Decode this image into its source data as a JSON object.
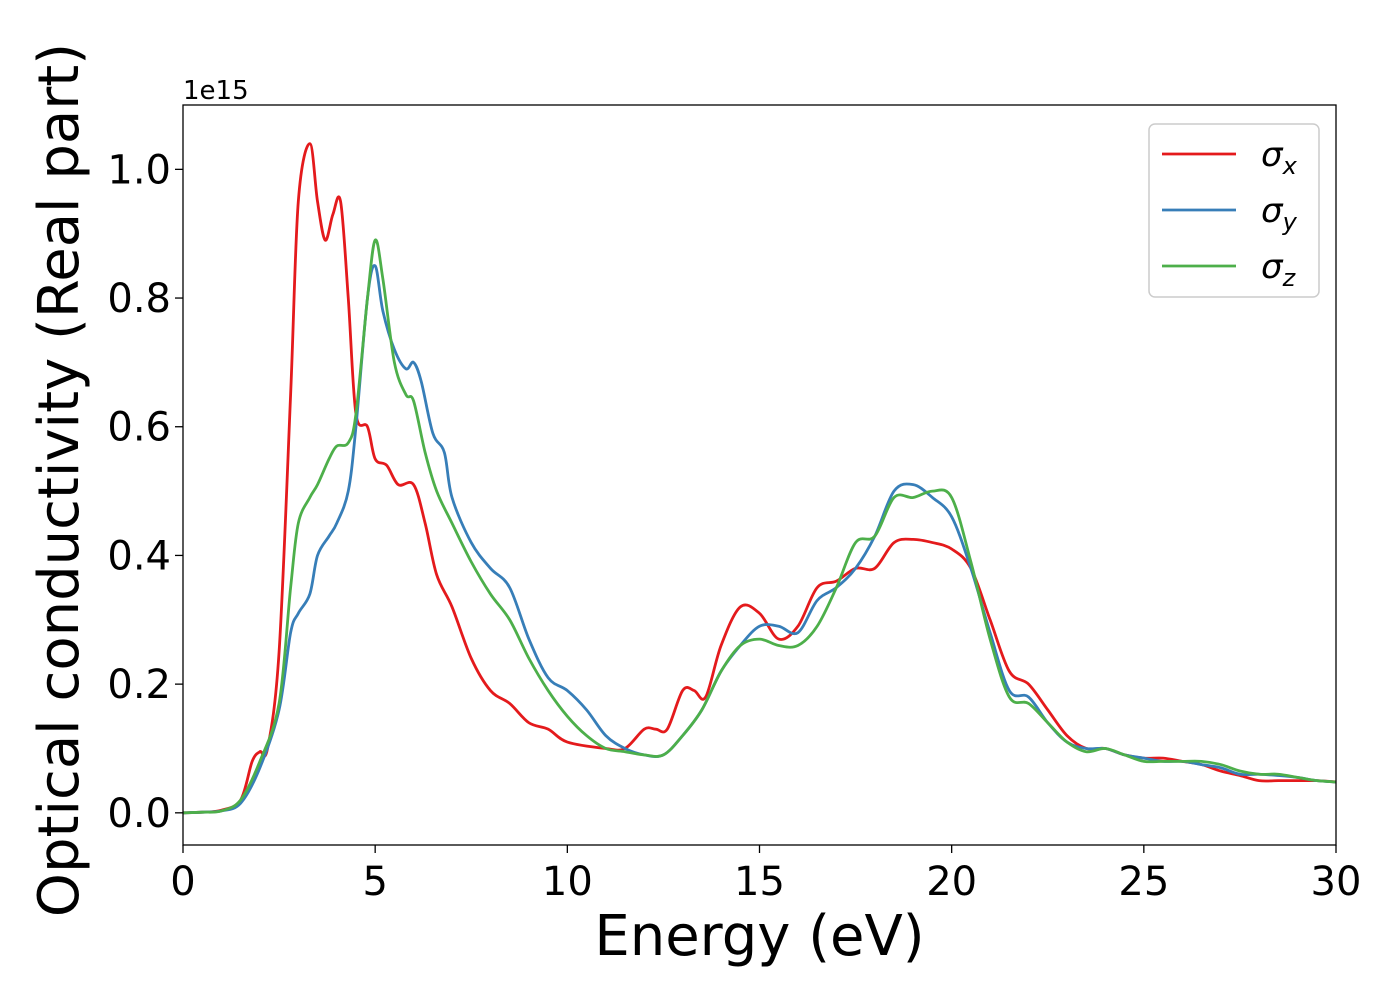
{
  "chart_data": {
    "type": "line",
    "title": "",
    "xlabel": "Energy (eV)",
    "ylabel": "Optical conductivity (Real part)",
    "y_offset_label": "1e15",
    "xlim": [
      0,
      30
    ],
    "ylim": [
      -0.05,
      1.1
    ],
    "x_ticks": [
      0,
      5,
      10,
      15,
      20,
      25,
      30
    ],
    "x_tick_labels": [
      "0",
      "5",
      "10",
      "15",
      "20",
      "25",
      "30"
    ],
    "y_ticks": [
      0.0,
      0.2,
      0.4,
      0.6,
      0.8,
      1.0
    ],
    "y_tick_labels": [
      "0.0",
      "0.2",
      "0.4",
      "0.6",
      "0.8",
      "1.0"
    ],
    "grid": false,
    "legend_position": "top-right",
    "series": [
      {
        "name": "σx",
        "legend_symbol": "σ",
        "legend_subscript": "x",
        "color": "#e41a1c",
        "points": [
          [
            0,
            0
          ],
          [
            0.5,
            0.001
          ],
          [
            1,
            0.004
          ],
          [
            1.5,
            0.02
          ],
          [
            1.8,
            0.08
          ],
          [
            2.0,
            0.095
          ],
          [
            2.2,
            0.1
          ],
          [
            2.5,
            0.25
          ],
          [
            2.8,
            0.65
          ],
          [
            3.0,
            0.95
          ],
          [
            3.3,
            1.04
          ],
          [
            3.5,
            0.95
          ],
          [
            3.7,
            0.89
          ],
          [
            3.9,
            0.93
          ],
          [
            4.1,
            0.95
          ],
          [
            4.3,
            0.8
          ],
          [
            4.5,
            0.62
          ],
          [
            4.8,
            0.6
          ],
          [
            5.0,
            0.55
          ],
          [
            5.3,
            0.54
          ],
          [
            5.6,
            0.51
          ],
          [
            6.0,
            0.51
          ],
          [
            6.3,
            0.45
          ],
          [
            6.6,
            0.37
          ],
          [
            7.0,
            0.32
          ],
          [
            7.5,
            0.24
          ],
          [
            8.0,
            0.19
          ],
          [
            8.5,
            0.17
          ],
          [
            9.0,
            0.14
          ],
          [
            9.5,
            0.13
          ],
          [
            10.0,
            0.11
          ],
          [
            11.0,
            0.1
          ],
          [
            11.5,
            0.1
          ],
          [
            12.0,
            0.13
          ],
          [
            12.3,
            0.13
          ],
          [
            12.6,
            0.13
          ],
          [
            13.0,
            0.19
          ],
          [
            13.3,
            0.19
          ],
          [
            13.6,
            0.18
          ],
          [
            14.0,
            0.26
          ],
          [
            14.5,
            0.32
          ],
          [
            15.0,
            0.31
          ],
          [
            15.5,
            0.27
          ],
          [
            16.0,
            0.29
          ],
          [
            16.5,
            0.35
          ],
          [
            17.0,
            0.36
          ],
          [
            17.5,
            0.38
          ],
          [
            18.0,
            0.38
          ],
          [
            18.5,
            0.42
          ],
          [
            19.0,
            0.425
          ],
          [
            19.5,
            0.42
          ],
          [
            20.0,
            0.41
          ],
          [
            20.5,
            0.38
          ],
          [
            21.0,
            0.3
          ],
          [
            21.5,
            0.22
          ],
          [
            22.0,
            0.2
          ],
          [
            22.5,
            0.16
          ],
          [
            23.0,
            0.12
          ],
          [
            23.5,
            0.1
          ],
          [
            24.0,
            0.1
          ],
          [
            24.5,
            0.09
          ],
          [
            25.0,
            0.085
          ],
          [
            25.5,
            0.085
          ],
          [
            26.0,
            0.08
          ],
          [
            26.5,
            0.075
          ],
          [
            27.0,
            0.065
          ],
          [
            27.5,
            0.058
          ],
          [
            28.0,
            0.05
          ],
          [
            28.5,
            0.05
          ],
          [
            29.0,
            0.05
          ],
          [
            29.5,
            0.05
          ],
          [
            30.0,
            0.048
          ]
        ]
      },
      {
        "name": "σy",
        "legend_symbol": "σ",
        "legend_subscript": "y",
        "color": "#377eb8",
        "points": [
          [
            0,
            0
          ],
          [
            0.5,
            0.001
          ],
          [
            1,
            0.003
          ],
          [
            1.5,
            0.015
          ],
          [
            2.0,
            0.07
          ],
          [
            2.5,
            0.16
          ],
          [
            2.8,
            0.28
          ],
          [
            3.0,
            0.31
          ],
          [
            3.3,
            0.34
          ],
          [
            3.5,
            0.4
          ],
          [
            3.8,
            0.43
          ],
          [
            4.0,
            0.45
          ],
          [
            4.3,
            0.5
          ],
          [
            4.5,
            0.6
          ],
          [
            4.8,
            0.8
          ],
          [
            5.0,
            0.85
          ],
          [
            5.2,
            0.78
          ],
          [
            5.5,
            0.72
          ],
          [
            5.8,
            0.69
          ],
          [
            6.0,
            0.7
          ],
          [
            6.2,
            0.67
          ],
          [
            6.5,
            0.59
          ],
          [
            6.8,
            0.56
          ],
          [
            7.0,
            0.49
          ],
          [
            7.5,
            0.42
          ],
          [
            8.0,
            0.38
          ],
          [
            8.5,
            0.35
          ],
          [
            9.0,
            0.27
          ],
          [
            9.5,
            0.21
          ],
          [
            10.0,
            0.19
          ],
          [
            10.5,
            0.16
          ],
          [
            11.0,
            0.12
          ],
          [
            11.5,
            0.1
          ],
          [
            12.0,
            0.09
          ],
          [
            12.5,
            0.09
          ],
          [
            13.0,
            0.12
          ],
          [
            13.5,
            0.16
          ],
          [
            14.0,
            0.22
          ],
          [
            14.5,
            0.26
          ],
          [
            15.0,
            0.29
          ],
          [
            15.5,
            0.29
          ],
          [
            16.0,
            0.28
          ],
          [
            16.5,
            0.33
          ],
          [
            17.0,
            0.35
          ],
          [
            17.5,
            0.38
          ],
          [
            18.0,
            0.43
          ],
          [
            18.5,
            0.5
          ],
          [
            19.0,
            0.51
          ],
          [
            19.5,
            0.49
          ],
          [
            20.0,
            0.46
          ],
          [
            20.5,
            0.38
          ],
          [
            21.0,
            0.28
          ],
          [
            21.5,
            0.19
          ],
          [
            22.0,
            0.18
          ],
          [
            22.5,
            0.14
          ],
          [
            23.0,
            0.11
          ],
          [
            23.5,
            0.1
          ],
          [
            24.0,
            0.1
          ],
          [
            24.5,
            0.09
          ],
          [
            25.0,
            0.085
          ],
          [
            25.5,
            0.08
          ],
          [
            26.0,
            0.08
          ],
          [
            26.5,
            0.075
          ],
          [
            27.0,
            0.07
          ],
          [
            27.5,
            0.06
          ],
          [
            28.0,
            0.06
          ],
          [
            28.5,
            0.058
          ],
          [
            29.0,
            0.055
          ],
          [
            29.5,
            0.05
          ],
          [
            30.0,
            0.048
          ]
        ]
      },
      {
        "name": "σz",
        "legend_symbol": "σ",
        "legend_subscript": "z",
        "color": "#4daf4a",
        "points": [
          [
            0,
            0
          ],
          [
            0.5,
            0.001
          ],
          [
            1,
            0.003
          ],
          [
            1.5,
            0.02
          ],
          [
            2.0,
            0.08
          ],
          [
            2.5,
            0.17
          ],
          [
            2.8,
            0.35
          ],
          [
            3.0,
            0.45
          ],
          [
            3.3,
            0.49
          ],
          [
            3.5,
            0.51
          ],
          [
            3.8,
            0.55
          ],
          [
            4.0,
            0.57
          ],
          [
            4.3,
            0.575
          ],
          [
            4.5,
            0.62
          ],
          [
            4.8,
            0.8
          ],
          [
            5.0,
            0.89
          ],
          [
            5.2,
            0.83
          ],
          [
            5.5,
            0.7
          ],
          [
            5.8,
            0.65
          ],
          [
            6.0,
            0.64
          ],
          [
            6.3,
            0.56
          ],
          [
            6.6,
            0.5
          ],
          [
            7.0,
            0.45
          ],
          [
            7.5,
            0.39
          ],
          [
            8.0,
            0.34
          ],
          [
            8.5,
            0.3
          ],
          [
            9.0,
            0.24
          ],
          [
            9.5,
            0.19
          ],
          [
            10.0,
            0.15
          ],
          [
            10.5,
            0.12
          ],
          [
            11.0,
            0.1
          ],
          [
            11.5,
            0.095
          ],
          [
            12.0,
            0.09
          ],
          [
            12.5,
            0.09
          ],
          [
            13.0,
            0.12
          ],
          [
            13.5,
            0.16
          ],
          [
            14.0,
            0.22
          ],
          [
            14.5,
            0.26
          ],
          [
            15.0,
            0.27
          ],
          [
            15.5,
            0.26
          ],
          [
            16.0,
            0.26
          ],
          [
            16.5,
            0.29
          ],
          [
            17.0,
            0.35
          ],
          [
            17.5,
            0.42
          ],
          [
            18.0,
            0.43
          ],
          [
            18.5,
            0.49
          ],
          [
            19.0,
            0.49
          ],
          [
            19.5,
            0.5
          ],
          [
            20.0,
            0.49
          ],
          [
            20.5,
            0.39
          ],
          [
            21.0,
            0.27
          ],
          [
            21.5,
            0.18
          ],
          [
            22.0,
            0.17
          ],
          [
            22.5,
            0.14
          ],
          [
            23.0,
            0.11
          ],
          [
            23.5,
            0.095
          ],
          [
            24.0,
            0.1
          ],
          [
            24.5,
            0.09
          ],
          [
            25.0,
            0.08
          ],
          [
            25.5,
            0.08
          ],
          [
            26.0,
            0.08
          ],
          [
            26.5,
            0.08
          ],
          [
            27.0,
            0.075
          ],
          [
            27.5,
            0.065
          ],
          [
            28.0,
            0.06
          ],
          [
            28.5,
            0.06
          ],
          [
            29.0,
            0.055
          ],
          [
            29.5,
            0.05
          ],
          [
            30.0,
            0.048
          ]
        ]
      }
    ]
  }
}
